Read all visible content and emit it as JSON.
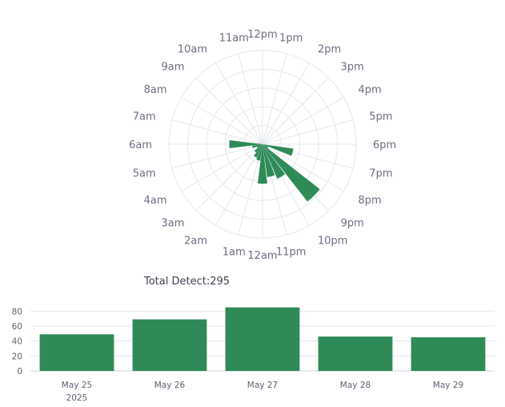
{
  "colors": {
    "bar": "#2e8b57",
    "grid": "#e3e8ec",
    "text": "#6b6f80"
  },
  "chart_data": [
    {
      "type": "polar-bar",
      "r_range": [
        0,
        45
      ],
      "grid": true,
      "hour_labels": [
        "12pm",
        "1pm",
        "2pm",
        "3pm",
        "4pm",
        "5pm",
        "6pm",
        "7pm",
        "8pm",
        "9pm",
        "10pm",
        "11pm",
        "12am",
        "1am",
        "2am",
        "3am",
        "4am",
        "5am",
        "6am",
        "7am",
        "8am",
        "9am",
        "10am",
        "11am"
      ],
      "bars": [
        {
          "hour": "6pm",
          "value": 0
        },
        {
          "hour": "7pm",
          "value": 15
        },
        {
          "hour": "8pm",
          "value": 3
        },
        {
          "hour": "9pm",
          "value": 35
        },
        {
          "hour": "10pm",
          "value": 18
        },
        {
          "hour": "11pm",
          "value": 16
        },
        {
          "hour": "12am",
          "value": 19
        },
        {
          "hour": "1am",
          "value": 8
        },
        {
          "hour": "2am",
          "value": 7
        },
        {
          "hour": "3am",
          "value": 5
        },
        {
          "hour": "4am",
          "value": 3
        },
        {
          "hour": "5am",
          "value": 5
        },
        {
          "hour": "6am",
          "value": 16
        }
      ]
    },
    {
      "type": "bar",
      "title": "Total Detect:295",
      "categories": [
        "May 25",
        "May 26",
        "May 27",
        "May 28",
        "May 29"
      ],
      "category_sublabels": [
        "2025",
        "",
        "",
        "",
        ""
      ],
      "values": [
        49,
        69,
        85,
        46,
        45
      ],
      "ylim": [
        0,
        90
      ],
      "yticks": [
        0,
        20,
        40,
        60,
        80
      ],
      "grid": true
    }
  ]
}
